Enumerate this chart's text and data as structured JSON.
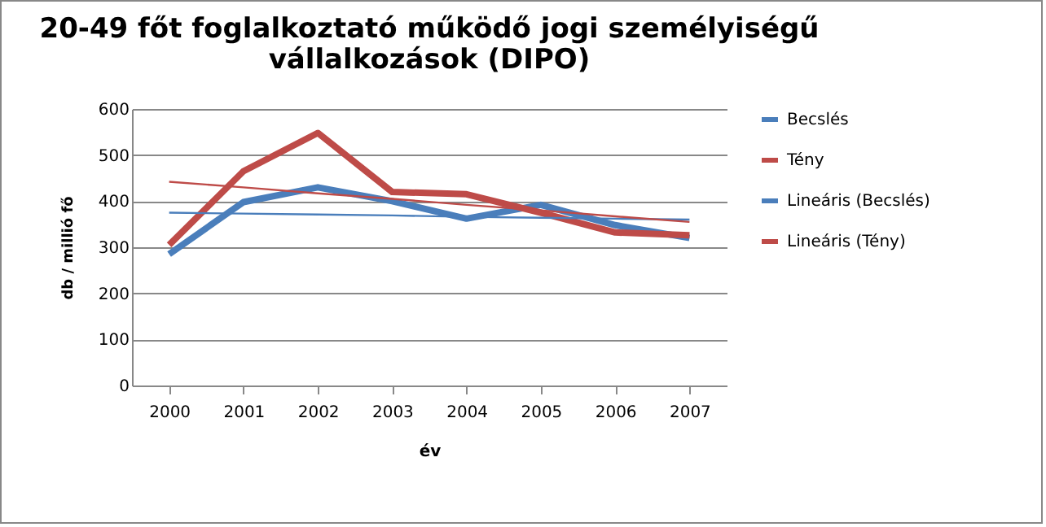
{
  "chart_data": {
    "type": "line",
    "title": "20-49 főt foglalkoztató  működő jogi személyiségű\nvállalkozások  (DIPO)",
    "xlabel": "év",
    "ylabel": "db / millió fő",
    "categories": [
      "2000",
      "2001",
      "2002",
      "2003",
      "2004",
      "2005",
      "2006",
      "2007"
    ],
    "series": [
      {
        "name": "Becslés",
        "color": "#4a7ebb",
        "values": [
          285,
          398,
          430,
          400,
          362,
          392,
          348,
          320
        ]
      },
      {
        "name": "Tény",
        "color": "#be4b48",
        "values": [
          305,
          465,
          548,
          420,
          415,
          375,
          332,
          326
        ]
      },
      {
        "name": "Lineáris (Becslés)",
        "type": "line",
        "color": "#4a7ebb",
        "values": [
          375,
          373,
          371,
          369,
          366,
          364,
          362,
          360
        ]
      },
      {
        "name": "Lineáris (Tény)",
        "type": "line",
        "color": "#be4b48",
        "values": [
          442,
          430,
          417,
          405,
          392,
          380,
          367,
          355
        ]
      }
    ],
    "ylim": [
      0,
      600
    ],
    "yticks": [
      0,
      100,
      200,
      300,
      400,
      500,
      600
    ],
    "grid": "y",
    "legend": "right",
    "marker": "none",
    "line_style": "solid"
  }
}
